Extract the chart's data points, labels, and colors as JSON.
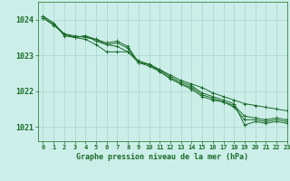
{
  "title": "Graphe pression niveau de la mer (hPa)",
  "background_color": "#cceee8",
  "grid_color": "#aad4cc",
  "line_color": "#1a6b2a",
  "marker_color": "#1a6b2a",
  "xlim": [
    -0.5,
    23
  ],
  "ylim": [
    1020.6,
    1024.5
  ],
  "xticks": [
    0,
    1,
    2,
    3,
    4,
    5,
    6,
    7,
    8,
    9,
    10,
    11,
    12,
    13,
    14,
    15,
    16,
    17,
    18,
    19,
    20,
    21,
    22,
    23
  ],
  "yticks": [
    1021,
    1022,
    1023,
    1024
  ],
  "series": [
    [
      1024.1,
      1023.9,
      1023.6,
      1023.55,
      1023.5,
      1023.45,
      1023.3,
      1023.25,
      1023.1,
      1022.85,
      1022.75,
      1022.6,
      1022.45,
      1022.3,
      1022.2,
      1022.1,
      1021.95,
      1021.85,
      1021.75,
      1021.65,
      1021.6,
      1021.55,
      1021.5,
      1021.45
    ],
    [
      1024.1,
      1023.9,
      1023.55,
      1023.5,
      1023.45,
      1023.3,
      1023.1,
      1023.1,
      1023.1,
      1022.8,
      1022.75,
      1022.6,
      1022.4,
      1022.25,
      1022.15,
      1021.95,
      1021.85,
      1021.75,
      1021.65,
      1021.05,
      1021.15,
      1021.1,
      1021.15,
      1021.1
    ],
    [
      1024.05,
      1023.85,
      1023.6,
      1023.5,
      1023.55,
      1023.45,
      1023.35,
      1023.4,
      1023.25,
      1022.8,
      1022.75,
      1022.55,
      1022.35,
      1022.2,
      1022.1,
      1021.9,
      1021.8,
      1021.7,
      1021.6,
      1021.3,
      1021.25,
      1021.2,
      1021.25,
      1021.2
    ],
    [
      1024.05,
      1023.85,
      1023.6,
      1023.5,
      1023.55,
      1023.4,
      1023.3,
      1023.35,
      1023.2,
      1022.8,
      1022.7,
      1022.55,
      1022.35,
      1022.2,
      1022.05,
      1021.85,
      1021.75,
      1021.7,
      1021.55,
      1021.2,
      1021.2,
      1021.15,
      1021.2,
      1021.15
    ]
  ]
}
